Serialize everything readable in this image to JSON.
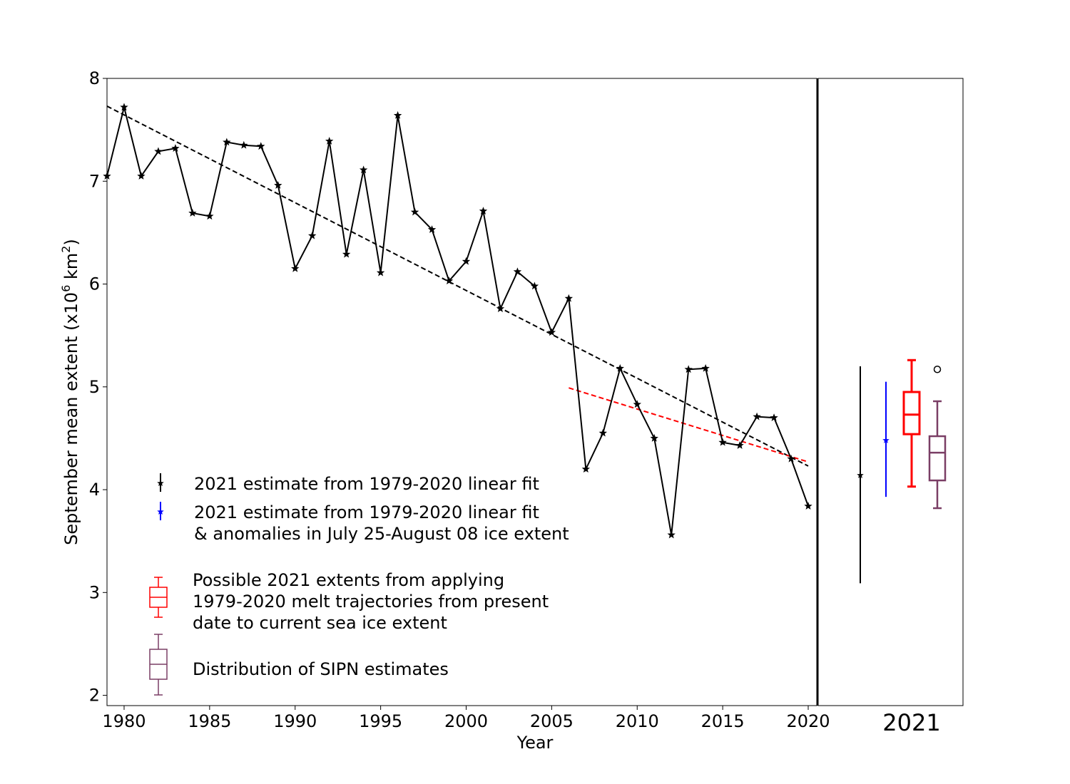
{
  "chart_data": {
    "type": "line",
    "xlabel": "Year",
    "ylabel": "September mean extent (x10",
    "ylabel_sup": "6",
    "ylabel_unit": " km",
    "ylabel_unit_sup": "2",
    "ylabel_close": ")",
    "xlim": [
      1979,
      2020.5
    ],
    "ylim": [
      1.9,
      8.0
    ],
    "x_ticks": [
      "1980",
      "1985",
      "1990",
      "1995",
      "2000",
      "2005",
      "2010",
      "2015",
      "2020"
    ],
    "y_ticks": [
      "2",
      "3",
      "4",
      "5",
      "6",
      "7",
      "8"
    ],
    "grid": false,
    "legend_position": "lower-left",
    "observed": {
      "x": [
        1979,
        1980,
        1981,
        1982,
        1983,
        1984,
        1985,
        1986,
        1987,
        1988,
        1989,
        1990,
        1991,
        1992,
        1993,
        1994,
        1995,
        1996,
        1997,
        1998,
        1999,
        2000,
        2001,
        2002,
        2003,
        2004,
        2005,
        2006,
        2007,
        2008,
        2009,
        2010,
        2011,
        2012,
        2013,
        2014,
        2015,
        2016,
        2017,
        2018,
        2019,
        2020
      ],
      "y": [
        7.05,
        7.72,
        7.05,
        7.29,
        7.32,
        6.69,
        6.66,
        7.38,
        7.35,
        7.34,
        6.96,
        6.15,
        6.47,
        7.39,
        6.29,
        7.11,
        6.11,
        7.64,
        6.7,
        6.53,
        6.03,
        6.22,
        6.71,
        5.76,
        6.12,
        5.98,
        5.53,
        5.86,
        4.2,
        4.55,
        5.18,
        4.83,
        4.5,
        3.56,
        5.17,
        5.18,
        4.46,
        4.43,
        4.71,
        4.7,
        4.3,
        3.84
      ],
      "color": "#000000"
    },
    "trend_1979_2020": {
      "x": [
        1979,
        2020
      ],
      "y": [
        7.73,
        4.23
      ],
      "color": "#000000",
      "style": "dashed"
    },
    "trend_recent": {
      "x": [
        2006,
        2020
      ],
      "y": [
        4.99,
        4.27
      ],
      "color": "#ff0000",
      "style": "dashed"
    },
    "category_2021": "2021",
    "estimates_2021": [
      {
        "key": "linear-fit",
        "type": "errorbar",
        "center": 4.14,
        "low": 3.09,
        "high": 5.2,
        "color": "#000000"
      },
      {
        "key": "linear-fit-anomalies",
        "type": "errorbar",
        "center": 4.48,
        "low": 3.93,
        "high": 5.05,
        "color": "#0000ff"
      },
      {
        "key": "melt-trajectories",
        "type": "boxplot",
        "whisker_low": 4.03,
        "q1": 4.54,
        "median": 4.73,
        "q3": 4.95,
        "whisker_high": 5.26,
        "outliers": [],
        "color": "#ff0000"
      },
      {
        "key": "sipn",
        "type": "boxplot",
        "whisker_low": 3.82,
        "q1": 4.09,
        "median": 4.36,
        "q3": 4.52,
        "whisker_high": 4.86,
        "outliers": [
          5.17
        ],
        "color": "#7a3e65"
      }
    ],
    "legend": [
      {
        "key": "linear-fit",
        "lines": [
          "2021 estimate from 1979-2020 linear fit"
        ],
        "color": "#000000",
        "marker": "errorbar"
      },
      {
        "key": "linear-fit-anomalies",
        "lines": [
          "2021 estimate from 1979-2020 linear fit",
          "& anomalies in July 25-August 08 ice extent"
        ],
        "color": "#0000ff",
        "marker": "errorbar"
      },
      {
        "key": "melt-trajectories",
        "lines": [
          "Possible 2021 extents from applying",
          "1979-2020 melt trajectories from present",
          "date to current sea ice extent"
        ],
        "color": "#ff0000",
        "marker": "box"
      },
      {
        "key": "sipn",
        "lines": [
          "Distribution of SIPN estimates"
        ],
        "color": "#7a3e65",
        "marker": "box"
      }
    ]
  }
}
